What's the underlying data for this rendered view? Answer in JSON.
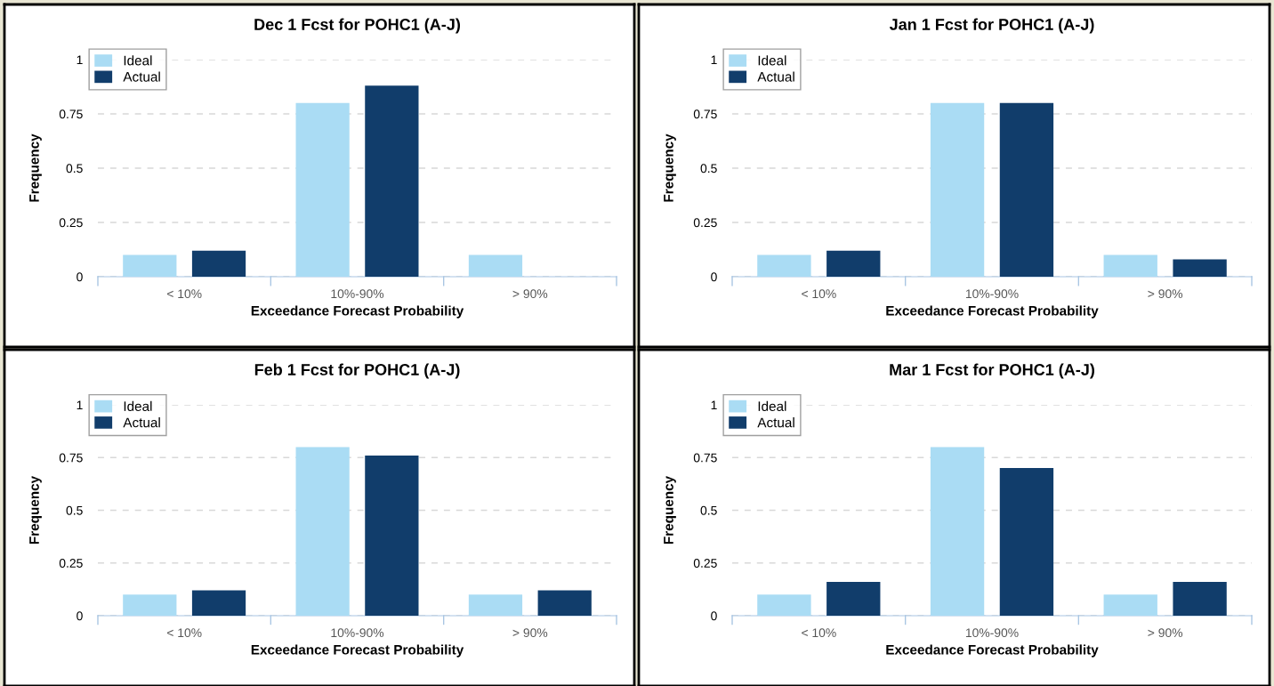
{
  "chart_data": [
    {
      "type": "bar",
      "title": "Dec 1 Fcst for POHC1 (A-J)",
      "xlabel": "Exceedance Forecast Probability",
      "ylabel": "Frequency",
      "categories": [
        "< 10%",
        "10%-90%",
        "> 90%"
      ],
      "ylim": [
        0,
        1
      ],
      "yticks": [
        0,
        0.25,
        0.5,
        0.75,
        1
      ],
      "grid": "y",
      "legend": "top left",
      "series": [
        {
          "name": "Ideal",
          "color": "#aadcf4",
          "values": [
            0.1,
            0.8,
            0.1
          ]
        },
        {
          "name": "Actual",
          "color": "#113d6b",
          "values": [
            0.12,
            0.88,
            0
          ]
        }
      ]
    },
    {
      "type": "bar",
      "title": "Jan 1 Fcst for POHC1 (A-J)",
      "xlabel": "Exceedance Forecast Probability",
      "ylabel": "Frequency",
      "categories": [
        "< 10%",
        "10%-90%",
        "> 90%"
      ],
      "ylim": [
        0,
        1
      ],
      "yticks": [
        0,
        0.25,
        0.5,
        0.75,
        1
      ],
      "grid": "y",
      "legend": "top left",
      "series": [
        {
          "name": "Ideal",
          "color": "#aadcf4",
          "values": [
            0.1,
            0.8,
            0.1
          ]
        },
        {
          "name": "Actual",
          "color": "#113d6b",
          "values": [
            0.12,
            0.8,
            0.08
          ]
        }
      ]
    },
    {
      "type": "bar",
      "title": "Feb 1 Fcst for POHC1 (A-J)",
      "xlabel": "Exceedance Forecast Probability",
      "ylabel": "Frequency",
      "categories": [
        "< 10%",
        "10%-90%",
        "> 90%"
      ],
      "ylim": [
        0,
        1
      ],
      "yticks": [
        0,
        0.25,
        0.5,
        0.75,
        1
      ],
      "grid": "y",
      "legend": "top left",
      "series": [
        {
          "name": "Ideal",
          "color": "#aadcf4",
          "values": [
            0.1,
            0.8,
            0.1
          ]
        },
        {
          "name": "Actual",
          "color": "#113d6b",
          "values": [
            0.12,
            0.76,
            0.12
          ]
        }
      ]
    },
    {
      "type": "bar",
      "title": "Mar 1 Fcst for POHC1 (A-J)",
      "xlabel": "Exceedance Forecast Probability",
      "ylabel": "Frequency",
      "categories": [
        "< 10%",
        "10%-90%",
        "> 90%"
      ],
      "ylim": [
        0,
        1
      ],
      "yticks": [
        0,
        0.25,
        0.5,
        0.75,
        1
      ],
      "grid": "y",
      "legend": "top left",
      "series": [
        {
          "name": "Ideal",
          "color": "#aadcf4",
          "values": [
            0.1,
            0.8,
            0.1
          ]
        },
        {
          "name": "Actual",
          "color": "#113d6b",
          "values": [
            0.16,
            0.7,
            0.16
          ]
        }
      ]
    }
  ]
}
